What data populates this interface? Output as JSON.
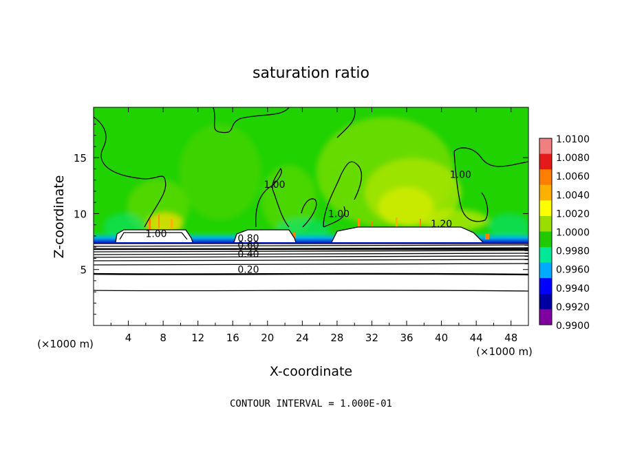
{
  "chart_data": {
    "type": "heatmap",
    "title": "saturation ratio",
    "xlabel": "X-coordinate",
    "ylabel": "Z-coordinate",
    "x_unit_left": "(×1000 m)",
    "x_unit_right": "(×1000 m)",
    "xlim": [
      0,
      50
    ],
    "ylim": [
      0,
      19.5
    ],
    "x_ticks": [
      "4",
      "8",
      "12",
      "16",
      "20",
      "24",
      "28",
      "32",
      "36",
      "40",
      "44",
      "48"
    ],
    "y_ticks": [
      "5",
      "10",
      "15"
    ],
    "colorbar": {
      "levels": [
        "1.0100",
        "1.0080",
        "1.0060",
        "1.0040",
        "1.0020",
        "1.0000",
        "0.9980",
        "0.9960",
        "0.9940",
        "0.9920",
        "0.9900"
      ],
      "colors": [
        "#f08080",
        "#e41a1a",
        "#ff7f00",
        "#ffb000",
        "#ffff00",
        "#9ade00",
        "#22c800",
        "#00e898",
        "#00aaff",
        "#0000ff",
        "#0000a0",
        "#8000a0"
      ]
    },
    "contour_labels": [
      {
        "text": "1.00",
        "x": 7.2,
        "z": 7.9
      },
      {
        "text": "1.00",
        "x": 20.8,
        "z": 12.3
      },
      {
        "text": "1.00",
        "x": 28.2,
        "z": 9.7
      },
      {
        "text": "1.20",
        "x": 40.0,
        "z": 8.8
      },
      {
        "text": "1.00",
        "x": 42.2,
        "z": 13.2
      },
      {
        "text": "0.80",
        "x": 17.8,
        "z": 7.5
      },
      {
        "text": "0.60",
        "x": 17.8,
        "z": 6.9
      },
      {
        "text": "0.40",
        "x": 17.8,
        "z": 6.1
      },
      {
        "text": "0.20",
        "x": 17.8,
        "z": 4.7
      }
    ],
    "contour_interval_text": "CONTOUR INTERVAL = 1.000E-01"
  }
}
